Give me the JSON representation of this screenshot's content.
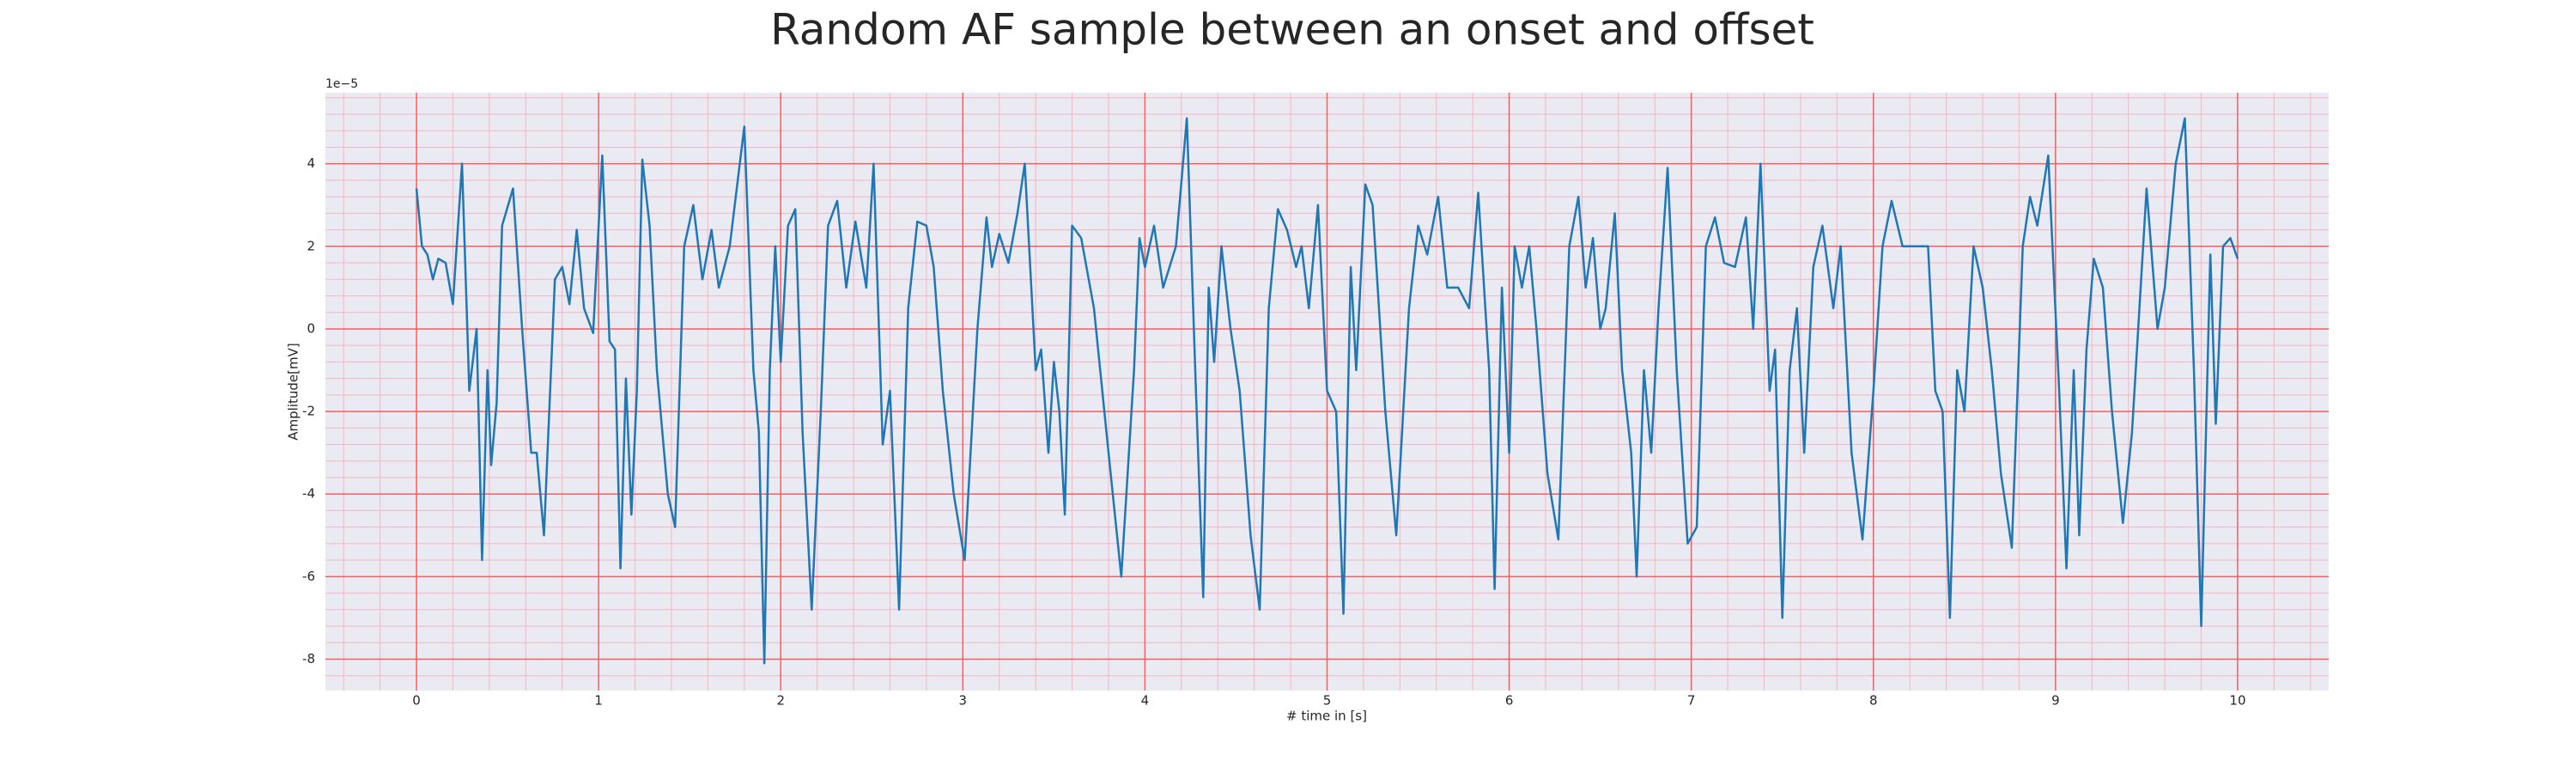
{
  "chart_data": {
    "type": "line",
    "title": "Random AF sample between an onset and offset",
    "xlabel": "# time in [s]",
    "ylabel": "Amplitude[mV]",
    "y_offset_label": "1e−5",
    "xlim": [
      -0.5,
      10.5
    ],
    "xticks": [
      0,
      1,
      2,
      3,
      4,
      5,
      6,
      7,
      8,
      9,
      10
    ],
    "ylim": [
      -8.76,
      5.72
    ],
    "yticks": [
      -8,
      -6,
      -4,
      -2,
      0,
      2,
      4
    ],
    "grid": true,
    "minor_grid": true,
    "series": [
      {
        "color": "#1f77b4",
        "x": [
          0.0,
          0.03,
          0.06,
          0.09,
          0.12,
          0.16,
          0.2,
          0.25,
          0.29,
          0.33,
          0.36,
          0.39,
          0.41,
          0.44,
          0.47,
          0.53,
          0.58,
          0.63,
          0.66,
          0.7,
          0.76,
          0.8,
          0.84,
          0.88,
          0.92,
          0.97,
          1.02,
          1.06,
          1.09,
          1.12,
          1.15,
          1.18,
          1.21,
          1.24,
          1.28,
          1.32,
          1.38,
          1.42,
          1.47,
          1.52,
          1.57,
          1.62,
          1.66,
          1.72,
          1.8,
          1.85,
          1.88,
          1.91,
          1.94,
          1.97,
          2.0,
          2.04,
          2.08,
          2.12,
          2.17,
          2.22,
          2.26,
          2.31,
          2.36,
          2.41,
          2.47,
          2.51,
          2.56,
          2.6,
          2.65,
          2.7,
          2.75,
          2.8,
          2.84,
          2.89,
          2.95,
          3.01,
          3.08,
          3.13,
          3.16,
          3.2,
          3.25,
          3.3,
          3.34,
          3.4,
          3.43,
          3.47,
          3.5,
          3.53,
          3.56,
          3.6,
          3.65,
          3.72,
          3.8,
          3.87,
          3.94,
          3.97,
          4.0,
          4.05,
          4.1,
          4.17,
          4.23,
          4.28,
          4.32,
          4.35,
          4.38,
          4.42,
          4.47,
          4.52,
          4.58,
          4.63,
          4.68,
          4.73,
          4.78,
          4.83,
          4.86,
          4.9,
          4.95,
          5.0,
          5.05,
          5.09,
          5.13,
          5.16,
          5.21,
          5.25,
          5.32,
          5.38,
          5.45,
          5.5,
          5.55,
          5.61,
          5.66,
          5.72,
          5.78,
          5.83,
          5.89,
          5.92,
          5.96,
          6.0,
          6.03,
          6.07,
          6.11,
          6.15,
          6.21,
          6.27,
          6.33,
          6.38,
          6.42,
          6.46,
          6.5,
          6.53,
          6.58,
          6.62,
          6.67,
          6.7,
          6.74,
          6.78,
          6.82,
          6.87,
          6.92,
          6.98,
          7.03,
          7.08,
          7.13,
          7.18,
          7.24,
          7.3,
          7.34,
          7.38,
          7.43,
          7.46,
          7.5,
          7.54,
          7.58,
          7.62,
          7.67,
          7.72,
          7.78,
          7.82,
          7.88,
          7.94,
          8.0,
          8.05,
          8.1,
          8.16,
          8.22,
          8.3,
          8.34,
          8.38,
          8.42,
          8.46,
          8.5,
          8.55,
          8.6,
          8.65,
          8.7,
          8.76,
          8.82,
          8.86,
          8.9,
          8.96,
          9.02,
          9.06,
          9.1,
          9.13,
          9.17,
          9.21,
          9.26,
          9.31,
          9.37,
          9.42,
          9.5,
          9.56,
          9.6,
          9.66,
          9.71,
          9.76,
          9.8,
          9.85,
          9.88,
          9.92,
          9.96,
          10.0
        ],
        "values": [
          3.4,
          2.0,
          1.8,
          1.2,
          1.7,
          1.6,
          0.6,
          4.0,
          -1.5,
          0.0,
          -5.6,
          -1.0,
          -3.3,
          -1.8,
          2.5,
          3.4,
          0.0,
          -3.0,
          -3.0,
          -5.0,
          1.2,
          1.5,
          0.6,
          2.4,
          0.5,
          -0.1,
          4.2,
          -0.3,
          -0.5,
          -5.8,
          -1.2,
          -4.5,
          -1.5,
          4.1,
          2.5,
          -1.0,
          -4.0,
          -4.8,
          2.0,
          3.0,
          1.2,
          2.4,
          1.0,
          2.0,
          4.9,
          -1.0,
          -2.5,
          -8.1,
          -1.0,
          2.0,
          -0.8,
          2.5,
          2.9,
          -2.5,
          -6.8,
          -2.0,
          2.5,
          3.1,
          1.0,
          2.6,
          1.0,
          4.0,
          -2.8,
          -1.5,
          -6.8,
          0.5,
          2.6,
          2.5,
          1.5,
          -1.5,
          -4.0,
          -5.6,
          0.0,
          2.7,
          1.5,
          2.3,
          1.6,
          2.8,
          4.0,
          -1.0,
          -0.5,
          -3.0,
          -0.8,
          -2.0,
          -4.5,
          2.5,
          2.2,
          0.5,
          -3.0,
          -6.0,
          -1.0,
          2.2,
          1.5,
          2.5,
          1.0,
          2.0,
          5.1,
          -1.5,
          -6.5,
          1.0,
          -0.8,
          2.0,
          0.0,
          -1.5,
          -5.0,
          -6.8,
          0.5,
          2.9,
          2.4,
          1.5,
          2.0,
          0.5,
          3.0,
          -1.5,
          -2.0,
          -6.9,
          1.5,
          -1.0,
          3.5,
          3.0,
          -2.0,
          -5.0,
          0.5,
          2.5,
          1.8,
          3.2,
          1.0,
          1.0,
          0.5,
          3.3,
          -1.0,
          -6.3,
          1.0,
          -3.0,
          2.0,
          1.0,
          2.0,
          0.0,
          -3.5,
          -5.1,
          2.0,
          3.2,
          1.0,
          2.2,
          0.0,
          0.5,
          2.8,
          -1.0,
          -3.0,
          -6.0,
          -1.0,
          -3.0,
          0.5,
          3.9,
          -1.0,
          -5.2,
          -4.8,
          2.0,
          2.7,
          1.6,
          1.5,
          2.7,
          0.0,
          4.0,
          -1.5,
          -0.5,
          -7.0,
          -1.0,
          0.5,
          -3.0,
          1.5,
          2.5,
          0.5,
          2.0,
          -3.0,
          -5.1,
          -1.5,
          2.0,
          3.1,
          2.0,
          2.0,
          2.0,
          -1.5,
          -2.0,
          -7.0,
          -1.0,
          -2.0,
          2.0,
          1.0,
          -1.0,
          -3.5,
          -5.3,
          2.0,
          3.2,
          2.5,
          4.2,
          -1.5,
          -5.8,
          -1.0,
          -5.0,
          -0.5,
          1.7,
          1.0,
          -2.0,
          -4.7,
          -2.5,
          3.4,
          0.0,
          1.0,
          4.0,
          5.1,
          -1.0,
          -7.2,
          1.8,
          -2.3,
          2.0,
          2.2,
          1.7
        ]
      }
    ]
  }
}
